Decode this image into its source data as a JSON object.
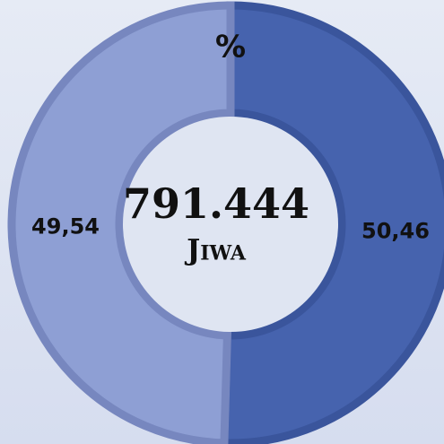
{
  "chart_data": {
    "type": "pie",
    "donut": true,
    "title": "%",
    "values": [
      50.46,
      49.54
    ],
    "value_labels": [
      "50,46",
      "49,54"
    ],
    "colors": [
      "#4663ae",
      "#8e9fd4"
    ],
    "center_text": [
      "791.444",
      "Jiwa"
    ]
  }
}
